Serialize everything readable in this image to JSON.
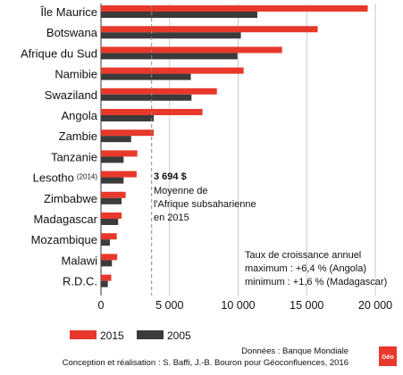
{
  "chart_data": {
    "type": "bar",
    "orientation": "horizontal",
    "title": "",
    "xlabel": "",
    "ylabel": "",
    "xlim": [
      0,
      20000
    ],
    "x_ticks": [
      0,
      5000,
      10000,
      15000,
      20000
    ],
    "x_tick_labels": [
      "0",
      "5 000",
      "10 000",
      "15 000",
      "20 000"
    ],
    "grid": "vertical",
    "categories": [
      "Île Maurice",
      "Botswana",
      "Afrique du Sud",
      "Namibie",
      "Swaziland",
      "Angola",
      "Zambie",
      "Tanzanie",
      "Lesotho",
      "Zimbabwe",
      "Madagascar",
      "Mozambique",
      "Malawi",
      "R.D.C."
    ],
    "category_suffixes": [
      "",
      "",
      "",
      "",
      "",
      "",
      "",
      "",
      "(2014)",
      "",
      "",
      "",
      "",
      ""
    ],
    "series": [
      {
        "name": "2015",
        "color": "#e8382b",
        "values": [
          19450,
          15800,
          13200,
          10400,
          8450,
          7400,
          3850,
          2650,
          2600,
          1800,
          1500,
          1150,
          1180,
          750
        ]
      },
      {
        "name": "2005",
        "color": "#3b3b3b",
        "values": [
          11400,
          10200,
          9950,
          6550,
          6600,
          3850,
          2200,
          1650,
          1650,
          1500,
          1250,
          650,
          800,
          500
        ]
      }
    ],
    "reference_line": {
      "value": 3694,
      "value_label": "3 694 $",
      "label_lines": [
        "Moyenne de",
        "l'Afrique subsaharienne",
        "en 2015"
      ]
    },
    "annotation": {
      "lines": [
        "Taux de croissance annuel",
        "maximum : +6,4 % (Angola)",
        "minimum : +1,6 % (Madagascar)"
      ]
    },
    "legend": {
      "placement": "bottom-left",
      "items": [
        "2015",
        "2005"
      ]
    },
    "source": {
      "line1": "Données : Banque Mondiale",
      "line2": "Conception et réalisation : S. Baffi, J.-B. Bouron pour Géoconfluences, 2016"
    }
  },
  "colors": {
    "series_2015": "#e8382b",
    "series_2005": "#3b3b3b",
    "grid": "#c8c8c8",
    "axis": "#333333",
    "reference": "#888888"
  },
  "logo": {
    "text": "Géo",
    "color": "#e8382b"
  }
}
